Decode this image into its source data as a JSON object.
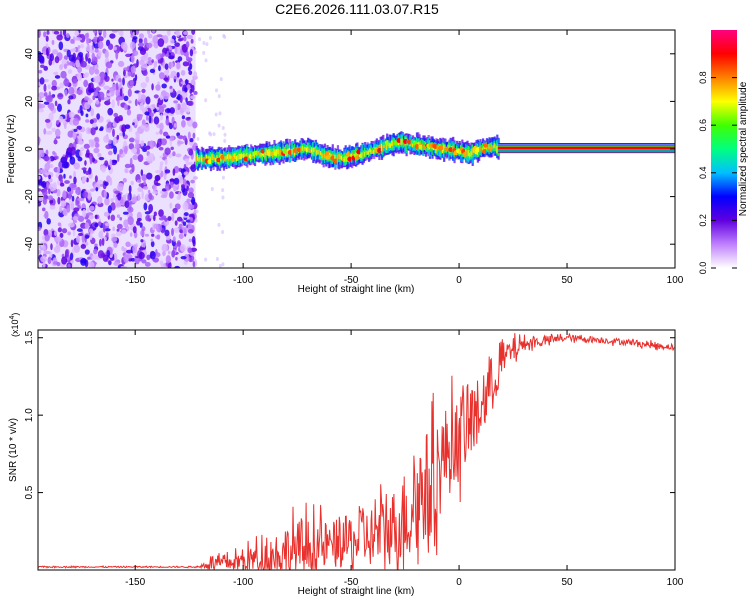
{
  "title": "C2E6.2026.111.03.07.R15",
  "chart_data": [
    {
      "type": "heatmap",
      "xlabel": "Height of straight line (km)",
      "ylabel": "Frequency (Hz)",
      "xlim": [
        -195,
        100
      ],
      "ylim": [
        -50,
        50
      ],
      "xticks": [
        -150,
        -100,
        -50,
        0,
        50,
        100
      ],
      "yticks": [
        -40,
        -20,
        0,
        20,
        40
      ],
      "colorbar": {
        "label": "Normalized spectral amplitude",
        "range": [
          0,
          1
        ],
        "ticks": [
          "0.0",
          "0.2",
          "0.4",
          "0.6",
          "0.8"
        ],
        "tick_values": [
          0,
          0.2,
          0.4,
          0.6,
          0.8
        ],
        "colormap": [
          "#ffffff",
          "#c080ff",
          "#6000e0",
          "#0000ff",
          "#00c0ff",
          "#00ff80",
          "#40ff00",
          "#ffff00",
          "#ff8000",
          "#ff0000",
          "#ff0080"
        ]
      },
      "noise_region_x": [
        -195,
        -122
      ],
      "ridge": {
        "x": [
          -122,
          -110,
          -100,
          -90,
          -80,
          -70,
          -62,
          -55,
          -45,
          -35,
          -28,
          -22,
          -15,
          -10,
          -5,
          0,
          5,
          10,
          15,
          20,
          100
        ],
        "freq": [
          -4,
          -4,
          -3,
          -2,
          -1,
          0,
          -3,
          -4,
          -2,
          1,
          3,
          2,
          1,
          0,
          0,
          -1,
          -2,
          0,
          1,
          0,
          0
        ],
        "stable_from_x": 18
      }
    },
    {
      "type": "line",
      "xlabel": "Height of straight line (km)",
      "ylabel": "SNR (10 * v/v)",
      "y_multiplier": "(x10",
      "y_multiplier_exp": "4",
      "y_multiplier_close": ")",
      "xlim": [
        -195,
        100
      ],
      "ylim": [
        0,
        1.55
      ],
      "xticks": [
        -150,
        -100,
        -50,
        0,
        50,
        100
      ],
      "yticks": [
        "0.5",
        "1.0",
        "1.5"
      ],
      "ytick_values": [
        0.5,
        1.0,
        1.5
      ],
      "series": [
        {
          "color": "#e8302c",
          "envelope": {
            "x": [
              -195,
              -120,
              -115,
              -110,
              -100,
              -90,
              -80,
              -70,
              -60,
              -50,
              -40,
              -30,
              -25,
              -20,
              -10,
              -5,
              0,
              5,
              10,
              15,
              20,
              25,
              30,
              40,
              50,
              60,
              70,
              80,
              90,
              100
            ],
            "mean": [
              0.02,
              0.02,
              0.05,
              0.04,
              0.06,
              0.08,
              0.12,
              0.14,
              0.16,
              0.18,
              0.22,
              0.28,
              0.35,
              0.45,
              0.65,
              0.78,
              0.85,
              0.95,
              1.05,
              1.2,
              1.35,
              1.42,
              1.46,
              1.48,
              1.5,
              1.49,
              1.48,
              1.47,
              1.45,
              1.44
            ],
            "spread": [
              0.004,
              0.004,
              0.05,
              0.04,
              0.07,
              0.12,
              0.18,
              0.2,
              0.15,
              0.18,
              0.2,
              0.25,
              0.3,
              0.35,
              0.35,
              0.3,
              0.28,
              0.25,
              0.2,
              0.18,
              0.12,
              0.08,
              0.04,
              0.03,
              0.02,
              0.02,
              0.02,
              0.02,
              0.02,
              0.02
            ]
          }
        }
      ]
    }
  ]
}
